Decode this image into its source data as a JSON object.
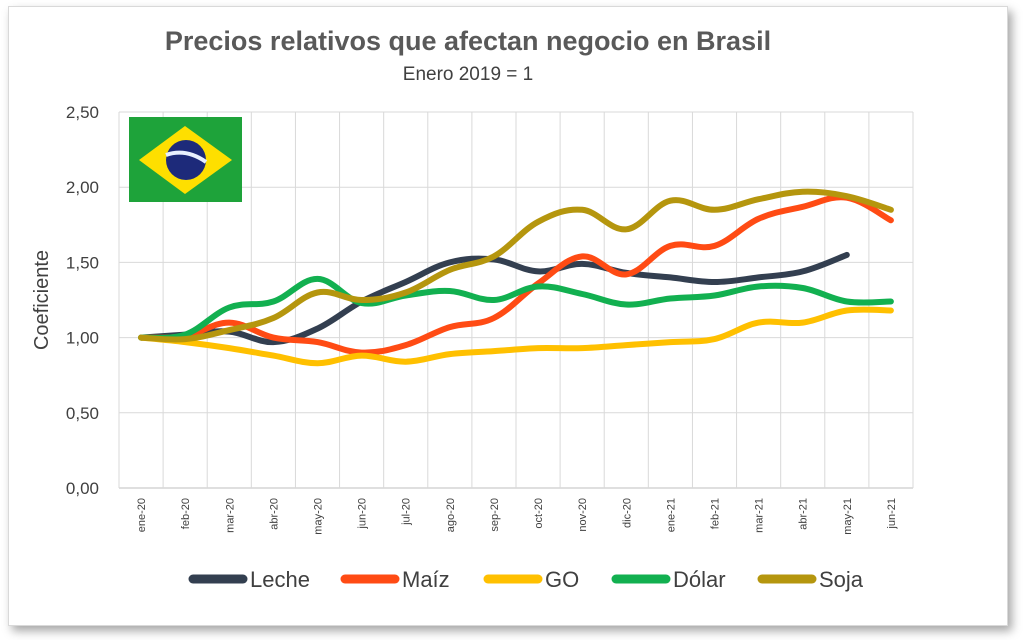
{
  "chart_data": {
    "type": "line",
    "title": "Precios relativos que afectan negocio en Brasil",
    "subtitle": "Enero 2019 = 1",
    "ylabel": "Coeficiente",
    "xlabel": "",
    "ylim": [
      0,
      2.5
    ],
    "yticks": [
      "0,00",
      "0,50",
      "1,00",
      "1,50",
      "2,00",
      "2,50"
    ],
    "grid": true,
    "legend_position": "bottom",
    "categories": [
      "ene-20",
      "feb-20",
      "mar-20",
      "abr-20",
      "may-20",
      "jun-20",
      "jul-20",
      "ago-20",
      "sep-20",
      "oct-20",
      "nov-20",
      "dic-20",
      "ene-21",
      "feb-21",
      "mar-21",
      "abr-21",
      "may-21",
      "jun-21"
    ],
    "series": [
      {
        "name": "Leche",
        "color": "#333f50",
        "values": [
          1.0,
          1.02,
          1.04,
          0.97,
          1.06,
          1.24,
          1.37,
          1.5,
          1.52,
          1.44,
          1.49,
          1.43,
          1.4,
          1.37,
          1.4,
          1.44,
          1.55,
          null
        ]
      },
      {
        "name": "Maíz",
        "color": "#ff4b14",
        "values": [
          1.0,
          1.01,
          1.1,
          1.0,
          0.97,
          0.9,
          0.95,
          1.07,
          1.13,
          1.36,
          1.54,
          1.42,
          1.61,
          1.61,
          1.79,
          1.87,
          1.93,
          1.78
        ]
      },
      {
        "name": "GO",
        "color": "#ffc000",
        "values": [
          1.0,
          0.97,
          0.93,
          0.88,
          0.83,
          0.88,
          0.84,
          0.89,
          0.91,
          0.93,
          0.93,
          0.95,
          0.97,
          0.99,
          1.1,
          1.1,
          1.18,
          1.18
        ]
      },
      {
        "name": "Dólar",
        "color": "#12b050",
        "values": [
          1.0,
          1.02,
          1.2,
          1.24,
          1.39,
          1.23,
          1.28,
          1.31,
          1.25,
          1.34,
          1.29,
          1.22,
          1.26,
          1.28,
          1.34,
          1.33,
          1.24,
          1.24
        ]
      },
      {
        "name": "Soja",
        "color": "#b5960e",
        "values": [
          1.0,
          0.99,
          1.05,
          1.13,
          1.3,
          1.25,
          1.3,
          1.45,
          1.54,
          1.77,
          1.85,
          1.72,
          1.91,
          1.85,
          1.92,
          1.97,
          1.94,
          1.85
        ]
      }
    ]
  },
  "flag": {
    "name": "brazil-flag",
    "colors": {
      "green": "#1ea33a",
      "yellow": "#fedf00",
      "blue": "#1d2a7a",
      "band": "#e8f0ff"
    }
  }
}
